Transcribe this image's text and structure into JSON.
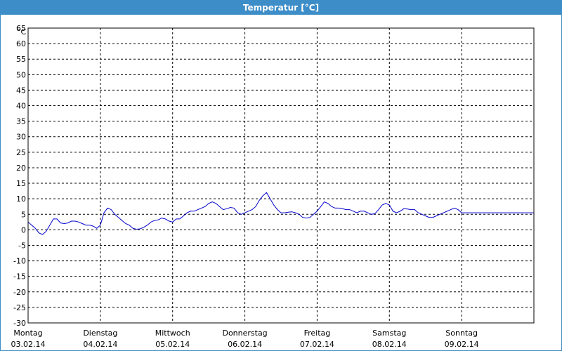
{
  "window": {
    "title": "Temperatur [°C]",
    "title_bar_color": "#3c8dc8"
  },
  "chart_data": {
    "type": "line",
    "title": "Temperatur [°C]",
    "y_unit": "°C",
    "ylim": [
      -30,
      65
    ],
    "y_ticks": [
      65,
      60,
      55,
      50,
      45,
      40,
      35,
      30,
      25,
      20,
      15,
      10,
      5,
      0,
      -5,
      -10,
      -15,
      -20,
      -25,
      -30
    ],
    "x_range_days": [
      0,
      7
    ],
    "grid": true,
    "line_color": "#0000cc",
    "x_day_labels": [
      {
        "day": "Montag",
        "date": "03.02.14"
      },
      {
        "day": "Dienstag",
        "date": "04.02.14"
      },
      {
        "day": "Mittwoch",
        "date": "05.02.14"
      },
      {
        "day": "Donnerstag",
        "date": "06.02.14"
      },
      {
        "day": "Freitag",
        "date": "07.02.14"
      },
      {
        "day": "Samstag",
        "date": "08.02.14"
      },
      {
        "day": "Sonntag",
        "date": "09.02.14"
      }
    ],
    "series": [
      {
        "x": [
          0.0,
          0.05,
          0.1,
          0.15,
          0.2,
          0.25,
          0.3,
          0.35,
          0.4,
          0.45,
          0.5,
          0.55,
          0.6,
          0.65,
          0.7,
          0.75,
          0.8,
          0.85,
          0.9,
          0.95,
          1.0,
          1.05,
          1.1,
          1.15,
          1.2,
          1.25,
          1.3,
          1.35,
          1.4,
          1.45,
          1.5,
          1.55,
          1.6,
          1.65,
          1.7,
          1.75,
          1.8,
          1.85,
          1.9,
          1.95,
          2.0,
          2.05,
          2.1,
          2.15,
          2.2,
          2.25,
          2.3,
          2.35,
          2.4,
          2.45,
          2.5,
          2.55,
          2.6,
          2.65,
          2.7,
          2.75,
          2.8,
          2.85,
          2.9,
          2.95,
          3.0,
          3.05,
          3.1,
          3.15,
          3.2,
          3.25,
          3.3,
          3.35,
          3.4,
          3.45,
          3.5,
          3.55,
          3.6,
          3.65,
          3.7,
          3.75,
          3.8,
          3.85,
          3.9,
          3.95,
          4.0,
          4.05,
          4.1,
          4.15,
          4.2,
          4.25,
          4.3,
          4.35,
          4.4,
          4.45,
          4.5,
          4.55,
          4.6,
          4.65,
          4.7,
          4.75,
          4.8,
          4.85,
          4.9,
          4.95,
          5.0,
          5.05,
          5.1,
          5.15,
          5.2,
          5.25,
          5.3,
          5.35,
          5.4,
          5.45,
          5.5,
          5.55,
          5.6,
          5.65,
          5.7,
          5.75,
          5.8,
          5.85,
          5.9,
          5.95,
          6.0,
          6.05,
          6.1,
          6.15,
          6.2,
          6.25,
          6.3,
          6.35,
          6.4,
          6.45,
          6.5,
          6.55,
          6.6,
          6.65,
          6.7,
          6.75,
          6.8,
          6.85,
          6.9,
          6.95,
          7.0
        ],
        "y": [
          2.5,
          1.5,
          0.5,
          -1.0,
          -1.5,
          -0.5,
          1.5,
          3.5,
          3.5,
          2.2,
          2.0,
          2.2,
          2.8,
          2.8,
          2.5,
          2.0,
          1.5,
          1.5,
          1.2,
          0.5,
          1.5,
          5.5,
          7.0,
          6.5,
          5.0,
          4.0,
          3.0,
          2.0,
          1.5,
          0.5,
          0.2,
          0.3,
          0.8,
          1.5,
          2.5,
          3.0,
          3.2,
          3.8,
          3.5,
          2.8,
          2.5,
          3.5,
          3.5,
          4.5,
          5.5,
          6.0,
          6.0,
          6.5,
          7.0,
          7.5,
          8.5,
          9.0,
          8.5,
          7.5,
          6.5,
          6.8,
          7.2,
          7.0,
          5.5,
          5.0,
          5.5,
          6.0,
          6.5,
          7.5,
          9.5,
          11.0,
          12.0,
          10.0,
          8.0,
          6.5,
          5.5,
          5.5,
          5.7,
          5.8,
          5.5,
          5.0,
          4.0,
          3.8,
          4.0,
          5.0,
          6.0,
          7.5,
          9.0,
          8.5,
          7.5,
          7.0,
          7.0,
          6.8,
          6.5,
          6.5,
          6.0,
          5.5,
          6.0,
          6.0,
          5.5,
          5.0,
          5.2,
          6.5,
          8.0,
          8.5,
          8.0,
          6.0,
          5.5,
          6.0,
          6.8,
          6.7,
          6.5,
          6.5,
          5.5,
          5.0,
          4.5,
          4.0,
          4.0,
          4.5,
          5.0,
          5.5,
          6.0,
          6.5,
          7.0,
          6.5,
          5.5,
          5.5,
          5.5,
          5.5,
          5.5,
          5.5,
          5.5,
          5.5,
          5.5,
          5.5,
          5.5,
          5.5,
          5.5,
          5.5,
          5.5,
          5.5,
          5.5,
          5.5,
          5.5,
          5.5,
          5.5
        ]
      }
    ]
  }
}
